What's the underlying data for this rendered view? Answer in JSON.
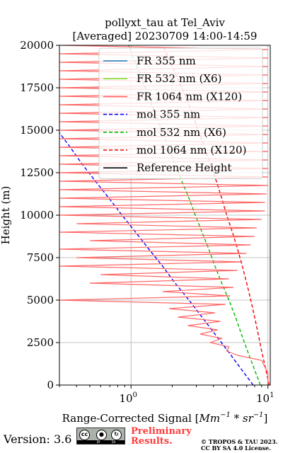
{
  "title": {
    "line1": "pollyxt_tau at Tel_Aviv",
    "line2": "[Averaged] 20230709 14:00-14:59"
  },
  "chart_data": {
    "type": "line",
    "ylabel": "Height (m)",
    "xlabel": "Range-Corrected Signal [$Mm^{-1}*sr^{-1}$]",
    "xlabel_parts": {
      "main": "Range-Corrected Signal [",
      "math": "Mm",
      "sup1": "−1",
      "mid": " * sr",
      "sup2": "−1",
      "end": "]"
    },
    "xscale": "log",
    "xlim": [
      0.3,
      10.4
    ],
    "ylim": [
      0,
      20000
    ],
    "x_ticks": [
      {
        "value": 1,
        "base": "10",
        "exp": "0"
      },
      {
        "value": 10,
        "base": "10",
        "exp": "1"
      }
    ],
    "y_ticks": [
      0,
      2500,
      5000,
      7500,
      10000,
      12500,
      15000,
      17500,
      20000
    ],
    "grid": true,
    "legend_position": "upper-right",
    "legend": [
      {
        "label": "FR 355 nm",
        "color": "#1f77b4",
        "style": "solid"
      },
      {
        "label": "FR 532 nm (X6)",
        "color": "#80e030",
        "style": "solid"
      },
      {
        "label": "FR 1064 nm (X120)",
        "color": "#ff6666",
        "style": "solid"
      },
      {
        "label": "mol 355 nm",
        "color": "#0000ff",
        "style": "dashed"
      },
      {
        "label": "mol 532 nm (X6)",
        "color": "#00bb00",
        "style": "dashed"
      },
      {
        "label": "mol 1064 nm (X120)",
        "color": "#ee0000",
        "style": "dashed"
      },
      {
        "label": "Reference Height",
        "color": "#000000",
        "style": "solid"
      }
    ],
    "series": [
      {
        "name": "mol 355 nm",
        "color": "#0000ff",
        "dash": true,
        "points": [
          [
            7.8,
            0
          ],
          [
            6.3,
            1000
          ],
          [
            5.1,
            2000
          ],
          [
            4.1,
            3000
          ],
          [
            3.3,
            4000
          ],
          [
            2.65,
            5000
          ],
          [
            2.1,
            6000
          ],
          [
            1.7,
            7000
          ],
          [
            1.35,
            8000
          ],
          [
            1.08,
            9000
          ],
          [
            0.86,
            10000
          ],
          [
            0.69,
            11000
          ],
          [
            0.55,
            12000
          ],
          [
            0.44,
            13000
          ],
          [
            0.36,
            14000
          ],
          [
            0.29,
            15000
          ]
        ]
      },
      {
        "name": "mol 532 nm (X6)",
        "color": "#00bb00",
        "dash": true,
        "points": [
          [
            8.8,
            0
          ],
          [
            7.9,
            1000
          ],
          [
            7.1,
            2000
          ],
          [
            6.4,
            3000
          ],
          [
            5.8,
            4000
          ],
          [
            5.2,
            5000
          ],
          [
            4.6,
            6000
          ],
          [
            4.1,
            7000
          ],
          [
            3.7,
            8000
          ],
          [
            3.3,
            9000
          ],
          [
            2.95,
            10000
          ],
          [
            2.65,
            11000
          ],
          [
            2.35,
            12000
          ],
          [
            2.1,
            13000
          ],
          [
            1.88,
            14000
          ],
          [
            1.68,
            15000
          ],
          [
            1.5,
            16000
          ],
          [
            1.34,
            17000
          ],
          [
            1.2,
            18000
          ],
          [
            1.07,
            19000
          ],
          [
            0.96,
            20000
          ]
        ]
      },
      {
        "name": "mol 1064 nm (X120)",
        "color": "#ee0000",
        "dash": true,
        "points": [
          [
            10.2,
            0
          ],
          [
            9.6,
            1000
          ],
          [
            9.0,
            2000
          ],
          [
            8.5,
            3000
          ],
          [
            8.0,
            4000
          ],
          [
            7.5,
            5000
          ],
          [
            7.0,
            6000
          ],
          [
            6.5,
            7000
          ],
          [
            6.0,
            8000
          ],
          [
            5.5,
            9000
          ],
          [
            5.0,
            10000
          ],
          [
            4.6,
            11000
          ],
          [
            4.2,
            12000
          ],
          [
            3.8,
            13000
          ],
          [
            3.45,
            14000
          ],
          [
            3.1,
            15000
          ],
          [
            2.8,
            16000
          ],
          [
            2.5,
            17000
          ],
          [
            2.2,
            18000
          ],
          [
            1.95,
            19000
          ],
          [
            1.7,
            20000
          ]
        ]
      },
      {
        "name": "FR 1064 nm (X120)",
        "color": "#ff6666",
        "dash": false,
        "points": [
          [
            10,
            0
          ],
          [
            10,
            700
          ],
          [
            9.0,
            1450
          ],
          [
            6.0,
            1750
          ],
          [
            5.0,
            2000
          ],
          [
            5.2,
            2250
          ],
          [
            3.8,
            2500
          ],
          [
            4.6,
            2750
          ],
          [
            3.2,
            3000
          ],
          [
            4.3,
            3250
          ],
          [
            2.6,
            3500
          ],
          [
            4.5,
            3750
          ],
          [
            2.2,
            4000
          ],
          [
            4.1,
            4250
          ],
          [
            1.9,
            4500
          ],
          [
            4.9,
            4750
          ],
          [
            0.3,
            5000
          ],
          [
            5.3,
            5250
          ],
          [
            1.7,
            5500
          ],
          [
            5.6,
            5750
          ],
          [
            0.5,
            6000
          ],
          [
            5.2,
            6250
          ],
          [
            0.6,
            6500
          ],
          [
            6.0,
            6750
          ],
          [
            0.3,
            7000
          ],
          [
            6.5,
            7250
          ],
          [
            0.4,
            7500
          ],
          [
            7.0,
            7750
          ],
          [
            0.3,
            8000
          ],
          [
            7.5,
            8250
          ],
          [
            0.5,
            8500
          ],
          [
            8.0,
            8750
          ],
          [
            0.3,
            9000
          ],
          [
            8.3,
            9250
          ],
          [
            0.4,
            9500
          ],
          [
            9.0,
            9750
          ],
          [
            0.3,
            10000
          ],
          [
            9.5,
            10250
          ],
          [
            0.3,
            10500
          ],
          [
            9.5,
            10750
          ],
          [
            0.3,
            11000
          ],
          [
            9.8,
            11250
          ],
          [
            0.3,
            11500
          ],
          [
            10,
            11750
          ],
          [
            0.3,
            12000
          ],
          [
            10,
            12250
          ],
          [
            0.3,
            12500
          ],
          [
            10,
            12750
          ],
          [
            0.3,
            13000
          ],
          [
            10,
            13250
          ],
          [
            0.3,
            13500
          ],
          [
            10,
            13750
          ],
          [
            0.3,
            14000
          ],
          [
            10,
            14250
          ],
          [
            0.3,
            14500
          ],
          [
            10,
            14750
          ],
          [
            0.3,
            15000
          ],
          [
            10,
            15250
          ],
          [
            0.3,
            15500
          ],
          [
            10,
            15750
          ],
          [
            0.3,
            16000
          ],
          [
            10,
            16250
          ],
          [
            0.3,
            16500
          ],
          [
            10,
            16750
          ],
          [
            0.3,
            17000
          ],
          [
            10,
            17250
          ],
          [
            0.3,
            17500
          ],
          [
            10,
            17750
          ],
          [
            0.3,
            18000
          ],
          [
            10,
            18250
          ],
          [
            0.3,
            18500
          ],
          [
            10,
            18750
          ],
          [
            0.3,
            19000
          ],
          [
            10,
            19250
          ],
          [
            0.3,
            19500
          ],
          [
            10,
            19750
          ],
          [
            0.3,
            20000
          ]
        ]
      }
    ]
  },
  "footer": {
    "version": "Version: 3.6",
    "license_badge": {
      "by": "BY",
      "sa": "SA",
      "cc_icon": "cc-icon",
      "by_icon": "person-icon",
      "sa_icon": "share-alike-icon"
    },
    "prelim_line1": "Preliminary",
    "prelim_line2": "Results.",
    "copyright_line1": "© TROPOS & TAU 2023.",
    "copyright_line2": "CC BY SA 4.0 License."
  }
}
